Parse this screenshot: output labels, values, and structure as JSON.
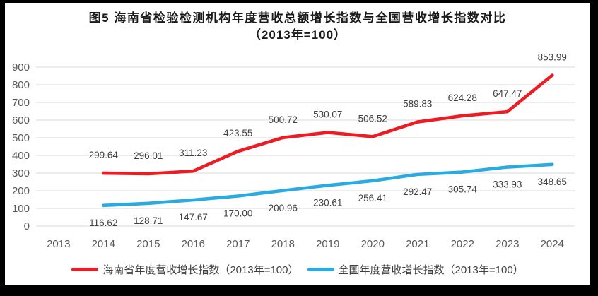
{
  "figure": {
    "title_line1": "图5  海南省检验检测机构年度营收总额增长指数与全国营收增长指数对比",
    "title_line2": "（2013年=100）"
  },
  "chart_data": {
    "type": "line",
    "title": "图5 海南省检验检测机构年度营收总额增长指数与全国营收增长指数对比（2013年=100）",
    "categories": [
      "2013",
      "2014",
      "2015",
      "2016",
      "2017",
      "2018",
      "2019",
      "2020",
      "2021",
      "2022",
      "2023",
      "2024"
    ],
    "series": [
      {
        "name": "海南省年度营收增长指数（2013年=100）",
        "color": "#ed1c24",
        "start_index": 1,
        "label_position": "above",
        "values": [
          299.64,
          296.01,
          311.23,
          423.55,
          500.72,
          530.07,
          506.52,
          589.83,
          624.28,
          647.47,
          853.99
        ]
      },
      {
        "name": "全国年度营收增长指数（2013年=100）",
        "color": "#29abe2",
        "start_index": 1,
        "label_position": "below",
        "values": [
          116.62,
          128.71,
          147.67,
          170.0,
          200.96,
          230.61,
          256.41,
          292.47,
          305.74,
          333.93,
          348.65
        ]
      }
    ],
    "xlabel": "",
    "ylabel": "",
    "ylim": [
      0,
      900
    ],
    "ytick_step": 100,
    "yticks": [
      0,
      100,
      200,
      300,
      400,
      500,
      600,
      700,
      800,
      900
    ],
    "grid": "horizontal",
    "legend_position": "bottom",
    "value_decimals": 2
  },
  "colors": {
    "grid": "#d9d9d9",
    "axis_text": "#595959",
    "label_text": "#404040",
    "frame": "#000000",
    "background": "#ffffff",
    "title_text": "#1a1a1a"
  }
}
